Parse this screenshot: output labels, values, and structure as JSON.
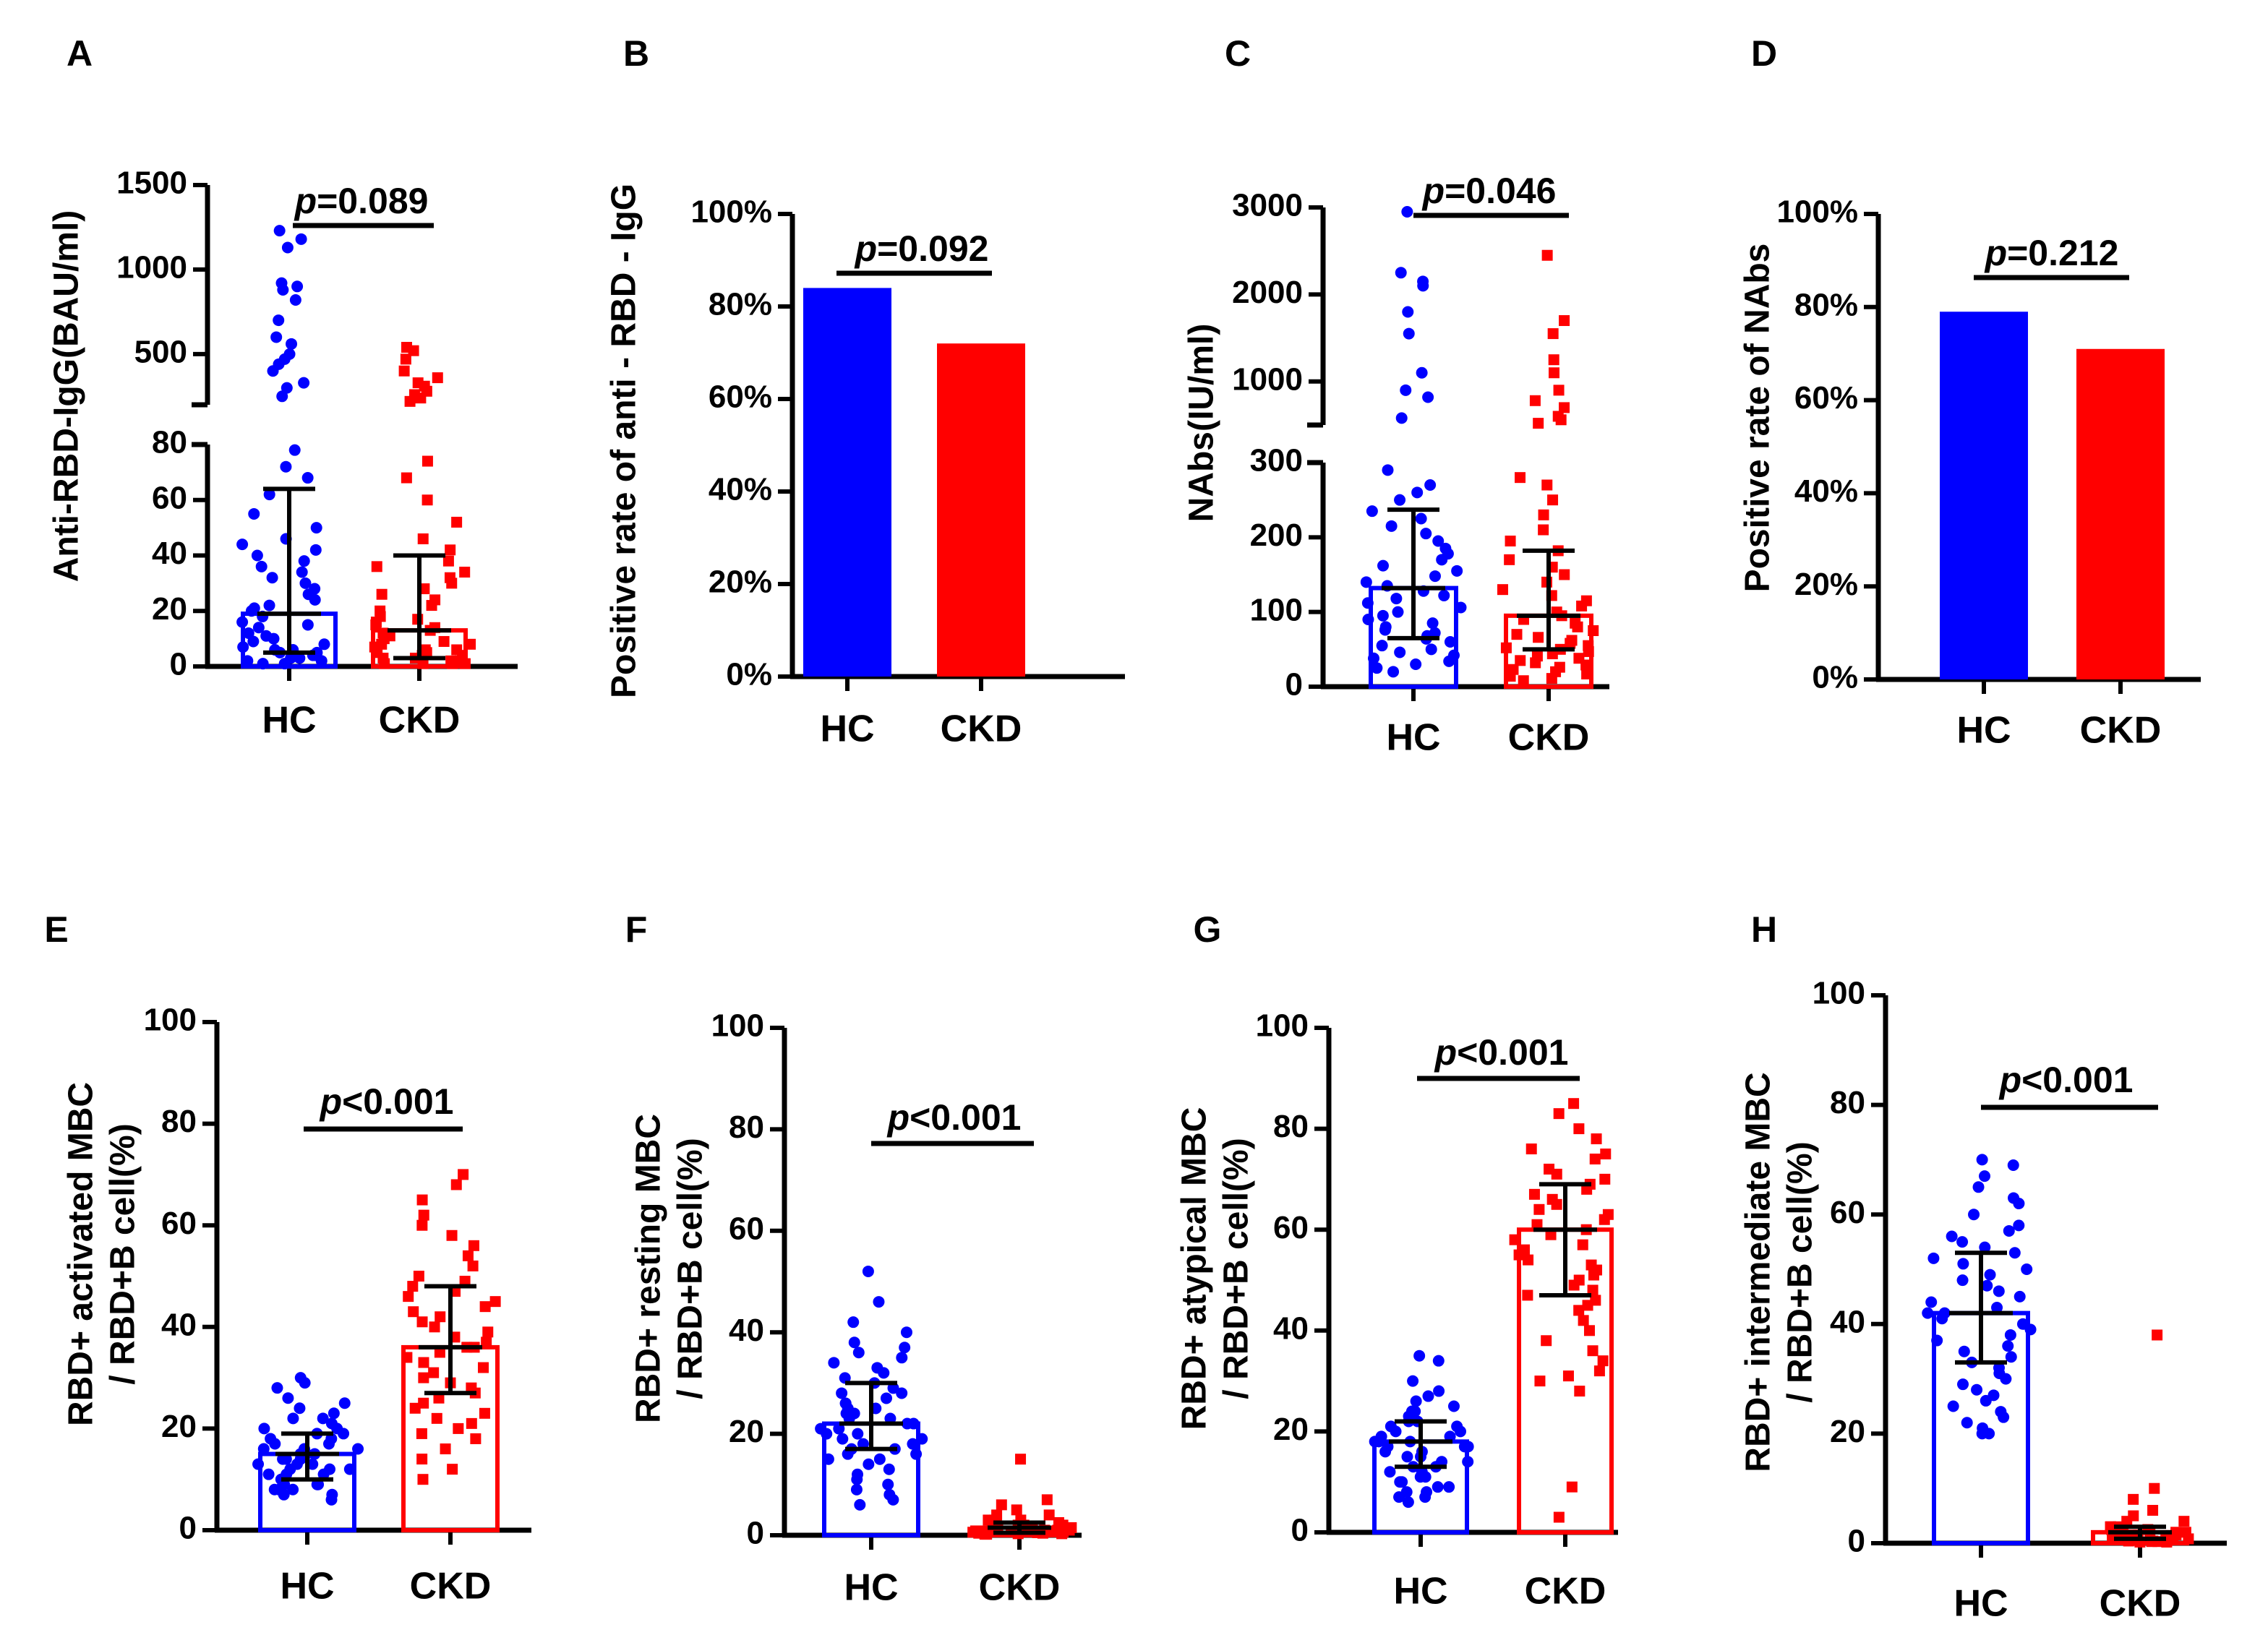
{
  "colors": {
    "hc": "#0000ff",
    "ckd": "#ff0000",
    "axis": "#000000"
  },
  "chart_data": [
    {
      "panel": "A",
      "type": "scatter",
      "ylabel": "Anti-RBD-IgG(BAU/ml)",
      "categories": [
        "HC",
        "CKD"
      ],
      "p_text": "=0.089",
      "axis_break": true,
      "ylim_lower": [
        0,
        80
      ],
      "ylim_upper": [
        200,
        1500
      ],
      "yticks_lower": [
        "0",
        "20",
        "40",
        "60",
        "80"
      ],
      "yticks_upper": [
        "500",
        "1000",
        "1500"
      ],
      "series": [
        {
          "name": "HC",
          "median": 19,
          "q1": 5,
          "q3": 64,
          "values": [
            1230,
            1180,
            1130,
            920,
            900,
            880,
            820,
            700,
            600,
            560,
            500,
            470,
            440,
            400,
            330,
            300,
            250,
            78,
            72,
            68,
            62,
            55,
            50,
            46,
            44,
            42,
            40,
            38,
            36,
            34,
            32,
            30,
            28,
            26,
            24,
            22,
            21,
            20,
            18,
            16,
            15,
            14,
            12,
            11,
            10,
            9,
            8,
            7,
            6,
            6,
            5,
            5,
            4,
            4,
            3,
            3,
            2,
            2,
            1,
            1
          ]
        },
        {
          "name": "CKD",
          "median": 13,
          "q1": 3,
          "q3": 40,
          "values": [
            540,
            520,
            470,
            400,
            360,
            330,
            310,
            280,
            260,
            240,
            220,
            74,
            68,
            60,
            52,
            46,
            42,
            38,
            36,
            34,
            32,
            30,
            28,
            26,
            24,
            22,
            20,
            18,
            17,
            16,
            15,
            14,
            13,
            12,
            11,
            10,
            9,
            8,
            8,
            7,
            6,
            6,
            5,
            5,
            4,
            4,
            3,
            3,
            2,
            2,
            1,
            1,
            1,
            1
          ]
        }
      ]
    },
    {
      "panel": "B",
      "type": "bar",
      "ylabel": "Positive rate of anti - RBD - IgG",
      "categories": [
        "HC",
        "CKD"
      ],
      "values": [
        84,
        72
      ],
      "ylim": [
        0,
        100
      ],
      "yticks": [
        "0%",
        "20%",
        "40%",
        "60%",
        "80%",
        "100%"
      ],
      "p_text": "=0.092"
    },
    {
      "panel": "C",
      "type": "scatter",
      "ylabel": "NAbs(IU/ml)",
      "categories": [
        "HC",
        "CKD"
      ],
      "p_text": "=0.046",
      "axis_break": true,
      "ylim_lower": [
        0,
        300
      ],
      "ylim_upper": [
        500,
        3000
      ],
      "yticks_lower": [
        "0",
        "100",
        "200",
        "300"
      ],
      "yticks_upper": [
        "1000",
        "2000",
        "3000"
      ],
      "series": [
        {
          "name": "HC",
          "median": 132,
          "q1": 65,
          "q3": 237,
          "values": [
            2950,
            2250,
            2150,
            2100,
            1800,
            1550,
            1100,
            900,
            820,
            580,
            290,
            270,
            260,
            250,
            235,
            225,
            215,
            205,
            195,
            185,
            178,
            170,
            162,
            155,
            148,
            140,
            135,
            128,
            122,
            118,
            112,
            106,
            100,
            95,
            90,
            85,
            80,
            76,
            72,
            68,
            64,
            60,
            55,
            50,
            46,
            42,
            38,
            34,
            30,
            25,
            20
          ]
        },
        {
          "name": "CKD",
          "median": 95,
          "q1": 50,
          "q3": 182,
          "values": [
            2450,
            1700,
            1550,
            1250,
            1100,
            900,
            780,
            700,
            600,
            560,
            520,
            280,
            270,
            250,
            230,
            210,
            195,
            182,
            170,
            160,
            150,
            140,
            130,
            122,
            115,
            108,
            100,
            95,
            90,
            85,
            80,
            75,
            70,
            66,
            62,
            58,
            55,
            52,
            50,
            47,
            44,
            41,
            38,
            35,
            32,
            29,
            26,
            23,
            20,
            17,
            14,
            11,
            8
          ]
        }
      ]
    },
    {
      "panel": "D",
      "type": "bar",
      "ylabel": "Positive rate of NAbs",
      "categories": [
        "HC",
        "CKD"
      ],
      "values": [
        79,
        71
      ],
      "ylim": [
        0,
        100
      ],
      "yticks": [
        "0%",
        "20%",
        "40%",
        "60%",
        "80%",
        "100%"
      ],
      "p_text": "=0.212"
    },
    {
      "panel": "E",
      "type": "scatter",
      "ylabel_line1": "RBD+ activated MBC",
      "ylabel_line2": "/ RBD+B cell(%)",
      "categories": [
        "HC",
        "CKD"
      ],
      "ylim": [
        0,
        100
      ],
      "yticks": [
        "0",
        "20",
        "40",
        "60",
        "80",
        "100"
      ],
      "p_text": "<0.001",
      "series": [
        {
          "name": "HC",
          "mean": 15,
          "lower": 10,
          "upper": 19,
          "values": [
            30,
            29,
            28,
            26,
            25,
            24,
            23,
            22,
            22,
            21,
            20,
            20,
            19,
            19,
            18,
            18,
            17,
            17,
            16,
            16,
            16,
            15,
            15,
            15,
            14,
            14,
            14,
            13,
            13,
            13,
            12,
            12,
            12,
            11,
            11,
            11,
            10,
            10,
            10,
            9,
            9,
            9,
            8,
            8,
            8,
            7,
            7,
            6
          ]
        },
        {
          "name": "CKD",
          "mean": 36,
          "lower": 27,
          "upper": 48,
          "values": [
            70,
            68,
            65,
            62,
            60,
            58,
            56,
            54,
            52,
            50,
            49,
            48,
            47,
            46,
            45,
            44,
            43,
            42,
            41,
            40,
            39,
            38,
            37,
            36,
            36,
            35,
            34,
            33,
            32,
            31,
            30,
            29,
            28,
            27,
            26,
            25,
            24,
            23,
            22,
            21,
            20,
            19,
            18,
            16,
            14,
            12,
            10
          ]
        }
      ]
    },
    {
      "panel": "F",
      "type": "scatter",
      "ylabel_line1": "RBD+ resting MBC",
      "ylabel_line2": "/ RBD+B cell(%)",
      "categories": [
        "HC",
        "CKD"
      ],
      "ylim": [
        0,
        100
      ],
      "yticks": [
        "0",
        "20",
        "40",
        "60",
        "80",
        "100"
      ],
      "p_text": "<0.001",
      "series": [
        {
          "name": "HC",
          "mean": 22,
          "lower": 17,
          "upper": 30,
          "values": [
            52,
            46,
            42,
            40,
            38,
            37,
            36,
            35,
            34,
            33,
            32,
            31,
            30,
            29,
            28,
            28,
            27,
            26,
            26,
            25,
            25,
            24,
            24,
            23,
            23,
            22,
            22,
            21,
            21,
            20,
            20,
            19,
            19,
            18,
            18,
            17,
            17,
            16,
            16,
            15,
            15,
            14,
            13,
            12,
            11,
            10,
            9,
            8,
            7,
            6
          ]
        },
        {
          "name": "CKD",
          "mean": 1.5,
          "lower": 0.5,
          "upper": 2.5,
          "values": [
            15,
            7,
            6,
            5,
            4,
            4,
            3,
            3,
            3,
            2.5,
            2.5,
            2,
            2,
            2,
            2,
            1.5,
            1.5,
            1.5,
            1.5,
            1,
            1,
            1,
            1,
            1,
            1,
            0.8,
            0.8,
            0.8,
            0.6,
            0.6,
            0.5,
            0.5,
            0.4,
            0.4,
            0.3,
            0.3,
            0.2,
            0.2
          ]
        }
      ]
    },
    {
      "panel": "G",
      "type": "scatter",
      "ylabel_line1": "RBD+ atypical MBC",
      "ylabel_line2": "/ RBD+B cell(%)",
      "categories": [
        "HC",
        "CKD"
      ],
      "ylim": [
        0,
        100
      ],
      "yticks": [
        "0",
        "20",
        "40",
        "60",
        "80",
        "100"
      ],
      "p_text": "<0.001",
      "series": [
        {
          "name": "HC",
          "mean": 18,
          "lower": 13,
          "upper": 22,
          "values": [
            35,
            34,
            30,
            28,
            27,
            26,
            25,
            24,
            24,
            23,
            22,
            22,
            21,
            21,
            20,
            20,
            19,
            19,
            18,
            18,
            18,
            17,
            17,
            17,
            16,
            16,
            15,
            15,
            14,
            14,
            13,
            13,
            12,
            12,
            11,
            11,
            10,
            10,
            9,
            9,
            8,
            8,
            7,
            7,
            6
          ]
        },
        {
          "name": "CKD",
          "mean": 60,
          "lower": 47,
          "upper": 69,
          "values": [
            85,
            83,
            80,
            78,
            76,
            75,
            74,
            72,
            71,
            70,
            69,
            68,
            67,
            66,
            65,
            64,
            63,
            62,
            61,
            60,
            59,
            58,
            57,
            56,
            55,
            54,
            53,
            52,
            51,
            50,
            49,
            48,
            47,
            46,
            45,
            44,
            42,
            40,
            38,
            36,
            34,
            32,
            31,
            30,
            28,
            9,
            3
          ]
        }
      ]
    },
    {
      "panel": "H",
      "type": "scatter",
      "ylabel_line1": "RBD+ intermediate MBC",
      "ylabel_line2": "/ RBD+B cell(%)",
      "categories": [
        "HC",
        "CKD"
      ],
      "ylim": [
        0,
        100
      ],
      "yticks": [
        "0",
        "20",
        "40",
        "60",
        "80",
        "100"
      ],
      "p_text": "<0.001",
      "series": [
        {
          "name": "HC",
          "mean": 42,
          "lower": 33,
          "upper": 53,
          "values": [
            70,
            69,
            67,
            65,
            63,
            62,
            60,
            58,
            57,
            56,
            55,
            54,
            53,
            52,
            51,
            50,
            49,
            48,
            47,
            46,
            45,
            44,
            43,
            42,
            42,
            41,
            40,
            39,
            38,
            37,
            36,
            35,
            34,
            33,
            32,
            31,
            30,
            29,
            28,
            27,
            26,
            25,
            24,
            23,
            22,
            21,
            20,
            20
          ]
        },
        {
          "name": "CKD",
          "mean": 2,
          "lower": 0.8,
          "upper": 3,
          "values": [
            38,
            10,
            8,
            6,
            5,
            4,
            4,
            3,
            3,
            3,
            2.5,
            2.5,
            2,
            2,
            2,
            2,
            1.5,
            1.5,
            1.5,
            1,
            1,
            1,
            1,
            1,
            0.8,
            0.8,
            0.6,
            0.6,
            0.5,
            0.5,
            0.4,
            0.4,
            0.3,
            0.3,
            0.2,
            0.2
          ]
        }
      ]
    }
  ]
}
